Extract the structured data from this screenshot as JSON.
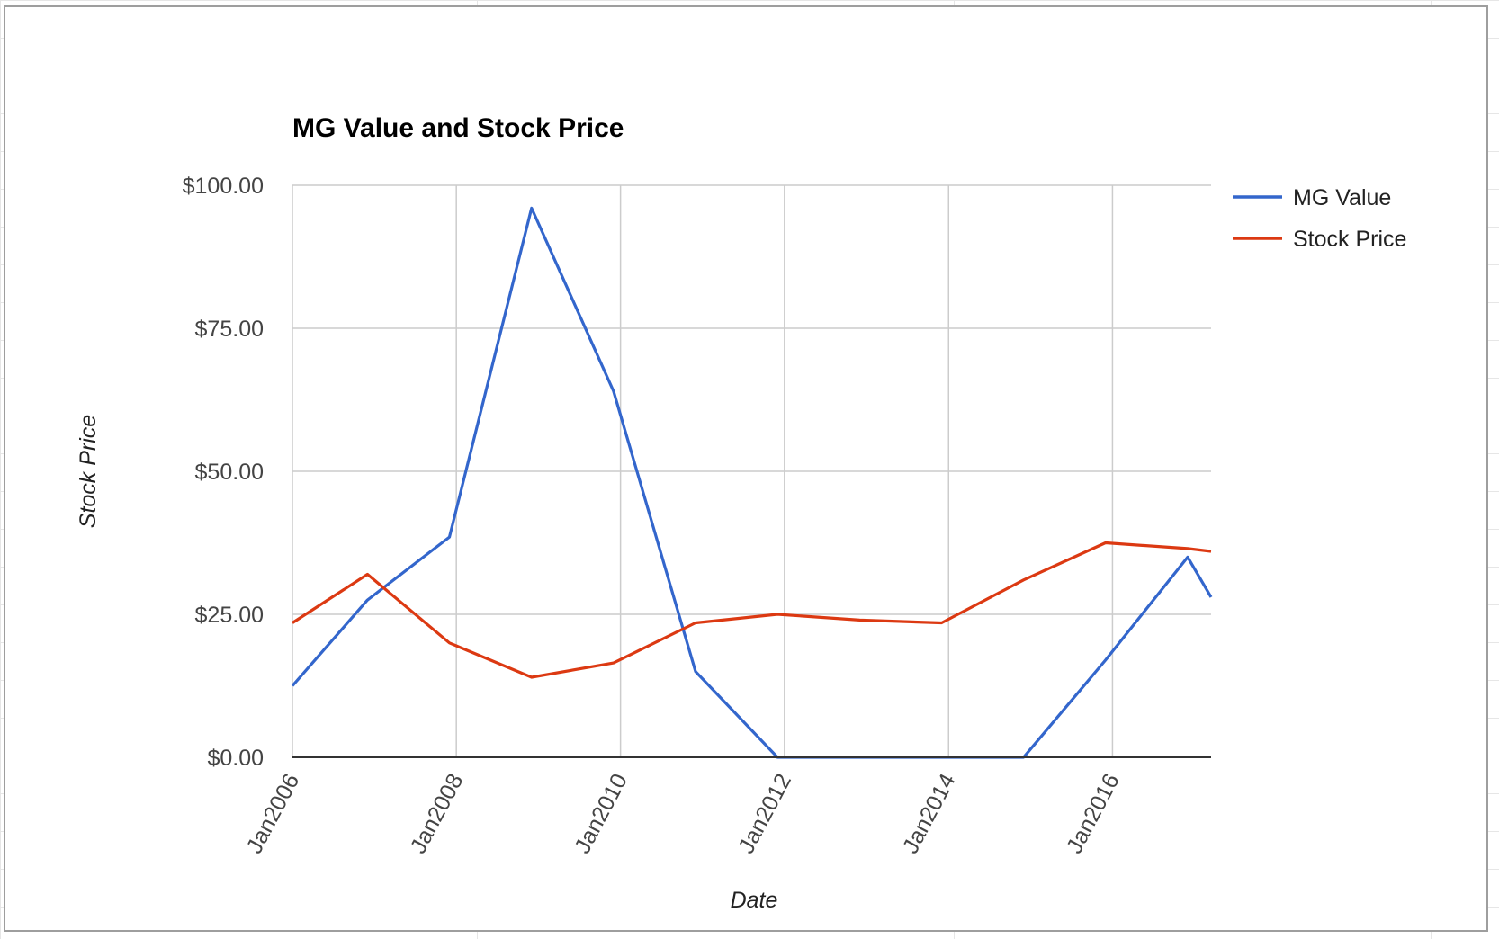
{
  "chart_data": {
    "type": "line",
    "title": "MG Value and Stock Price",
    "xlabel": "Date",
    "ylabel": "Stock Price",
    "y_ticks": [
      "$0.00",
      "$25.00",
      "$50.00",
      "$75.00",
      "$100.00"
    ],
    "y_tick_values": [
      0,
      25,
      50,
      75,
      100
    ],
    "ylim": [
      0,
      100
    ],
    "x_ticks": [
      "Jan2006",
      "Jan2008",
      "Jan2010",
      "Jan2012",
      "Jan2014",
      "Jan2016"
    ],
    "x_tick_values": [
      "2006-01-01",
      "2008-01-01",
      "2010-01-01",
      "2012-01-01",
      "2014-01-01",
      "2016-01-01"
    ],
    "xlim": [
      "2006-01-01",
      "2017-03-15"
    ],
    "grid": true,
    "legend_position": "right",
    "series": [
      {
        "name": "MG Value",
        "color": "#3366cc",
        "x": [
          "2006-01-01",
          "2006-12-01",
          "2007-12-01",
          "2008-12-01",
          "2009-12-01",
          "2010-12-01",
          "2011-12-01",
          "2012-12-01",
          "2013-12-01",
          "2014-12-01",
          "2015-12-01",
          "2016-12-01",
          "2017-03-15"
        ],
        "values": [
          12.5,
          27.5,
          38.5,
          96,
          64,
          15,
          0,
          0,
          0,
          0,
          17,
          35,
          28
        ]
      },
      {
        "name": "Stock Price",
        "color": "#dc3912",
        "x": [
          "2006-01-01",
          "2006-12-01",
          "2007-12-01",
          "2008-12-01",
          "2009-12-01",
          "2010-12-01",
          "2011-12-01",
          "2012-12-01",
          "2013-12-01",
          "2014-12-01",
          "2015-12-01",
          "2016-12-01",
          "2017-03-15"
        ],
        "values": [
          23.5,
          32,
          20,
          14,
          16.5,
          23.5,
          25,
          24,
          23.5,
          31,
          37.5,
          36.5,
          36
        ]
      }
    ]
  }
}
